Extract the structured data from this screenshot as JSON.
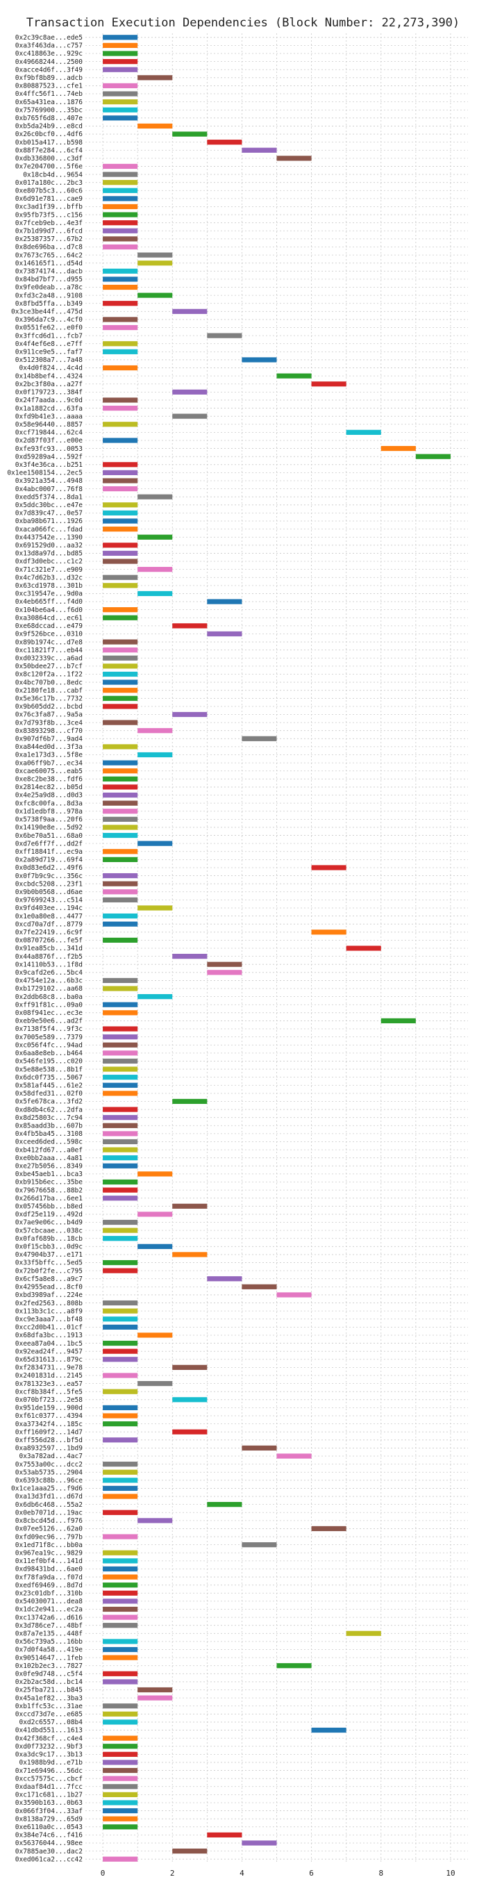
{
  "chart_data": {
    "type": "bar",
    "orientation": "horizontal-gantt",
    "title": "Transaction Execution Dependencies (Block Number: 22,273,390)",
    "xlabel": "",
    "ylabel": "",
    "xlim": [
      -0.5,
      10.5
    ],
    "xticks": [
      0,
      2,
      4,
      6,
      8,
      10
    ],
    "grid": true,
    "legend": "none",
    "bar_length": 1,
    "palette": [
      "#1f77b4",
      "#ff7f0e",
      "#2ca02c",
      "#d62728",
      "#9467bd",
      "#8c564b",
      "#e377c2",
      "#7f7f7f",
      "#bcbd22",
      "#17becf"
    ],
    "transactions": [
      {
        "label": "0x2c39c8ae...ede5",
        "start": 0
      },
      {
        "label": "0xa3f463da...c757",
        "start": 0
      },
      {
        "label": "0xc418863e...929c",
        "start": 0
      },
      {
        "label": "0x49668244...2500",
        "start": 0
      },
      {
        "label": "0xacce4d6f...3f49",
        "start": 0
      },
      {
        "label": "0xf9bf8b89...adcb",
        "start": 1
      },
      {
        "label": "0x80887523...cfe1",
        "start": 0
      },
      {
        "label": "0x4ffc56f1...74eb",
        "start": 0
      },
      {
        "label": "0x65a431ea...1876",
        "start": 0
      },
      {
        "label": "0x75769900...35bc",
        "start": 0
      },
      {
        "label": "0xb765f6d8...407e",
        "start": 0
      },
      {
        "label": "0xb5da24b9...e8cd",
        "start": 1
      },
      {
        "label": "0x26c0bcf0...4df6",
        "start": 2
      },
      {
        "label": "0xb015a417...b598",
        "start": 3
      },
      {
        "label": "0x88f7e284...6cf4",
        "start": 4
      },
      {
        "label": "0xdb336800...c3df",
        "start": 5
      },
      {
        "label": "0x7e204700...5f6e",
        "start": 0
      },
      {
        "label": "0x18cb4d...9654",
        "start": 0
      },
      {
        "label": "0x017a180c...2bc3",
        "start": 0
      },
      {
        "label": "0xe807b5c3...60c6",
        "start": 0
      },
      {
        "label": "0x6d91e781...cae9",
        "start": 0
      },
      {
        "label": "0xc3ad1f39...bffb",
        "start": 0
      },
      {
        "label": "0x95fb73f5...c156",
        "start": 0
      },
      {
        "label": "0x7fceb9eb...4e3f",
        "start": 0
      },
      {
        "label": "0x7b1d99d7...6fcd",
        "start": 0
      },
      {
        "label": "0x25387357...67b2",
        "start": 0
      },
      {
        "label": "0x8de696ba...d7c8",
        "start": 0
      },
      {
        "label": "0x7673c765...64c2",
        "start": 1
      },
      {
        "label": "0x146165f1...d54d",
        "start": 1
      },
      {
        "label": "0x73874174...dacb",
        "start": 0
      },
      {
        "label": "0x84bd7bf7...d955",
        "start": 0
      },
      {
        "label": "0x9fe0deab...a78c",
        "start": 0
      },
      {
        "label": "0xfd3c2a48...9108",
        "start": 1
      },
      {
        "label": "0x8fbd5ffa...b349",
        "start": 0
      },
      {
        "label": "0x3ce3be44f...475d",
        "start": 2
      },
      {
        "label": "0x396da7c9...4cf0",
        "start": 0
      },
      {
        "label": "0x0551fe62...e0f0",
        "start": 0
      },
      {
        "label": "0x3ffcd6d1...fcb7",
        "start": 3
      },
      {
        "label": "0x4f4ef6e8...e7ff",
        "start": 0
      },
      {
        "label": "0x911ce9e5...faf7",
        "start": 0
      },
      {
        "label": "0x512308a7...7a48",
        "start": 4
      },
      {
        "label": "0x4d0f824...4c4d",
        "start": 0
      },
      {
        "label": "0x14b8bef4...4324",
        "start": 5
      },
      {
        "label": "0x2bc3f80a...a27f",
        "start": 6
      },
      {
        "label": "0x0f179723...384f",
        "start": 2
      },
      {
        "label": "0x24f7aada...9c0d",
        "start": 0
      },
      {
        "label": "0x1a1882cd...63fa",
        "start": 0
      },
      {
        "label": "0xfd9b41e3...aaaa",
        "start": 2
      },
      {
        "label": "0x58e96440...8857",
        "start": 0
      },
      {
        "label": "0xcf719844...62c4",
        "start": 7
      },
      {
        "label": "0x2d87f03f...e00e",
        "start": 0
      },
      {
        "label": "0xfe93fc93...0053",
        "start": 8
      },
      {
        "label": "0xd59289a4...592f",
        "start": 9
      },
      {
        "label": "0x3f4e36ca...b251",
        "start": 0
      },
      {
        "label": "0x1ee1508154...2ec5",
        "start": 0
      },
      {
        "label": "0x3921a354...4948",
        "start": 0
      },
      {
        "label": "0x4abc0007...76f8",
        "start": 0
      },
      {
        "label": "0xedd5f374...8da1",
        "start": 1
      },
      {
        "label": "0x5ddc30bc...e47e",
        "start": 0
      },
      {
        "label": "0x7d839c47...0e57",
        "start": 0
      },
      {
        "label": "0xba98b671...1926",
        "start": 0
      },
      {
        "label": "0xaca066fc...fdad",
        "start": 0
      },
      {
        "label": "0x4437542e...1390",
        "start": 1
      },
      {
        "label": "0x691529d0...aa32",
        "start": 0
      },
      {
        "label": "0x13d8a97d...bd85",
        "start": 0
      },
      {
        "label": "0xdf3d0ebc...c1c2",
        "start": 0
      },
      {
        "label": "0x71c321e7...e909",
        "start": 1
      },
      {
        "label": "0x4c7d62b3...d32c",
        "start": 0
      },
      {
        "label": "0x63cd1978...301b",
        "start": 0
      },
      {
        "label": "0xc319547e...9d0a",
        "start": 1
      },
      {
        "label": "0x4eb665ff...f4d0",
        "start": 3
      },
      {
        "label": "0x104be6a4...f6d0",
        "start": 0
      },
      {
        "label": "0xa30864cd...ec61",
        "start": 0
      },
      {
        "label": "0xe68dccad...e479",
        "start": 2
      },
      {
        "label": "0x9f526bce...0310",
        "start": 3
      },
      {
        "label": "0x89b1974c...d7e8",
        "start": 0
      },
      {
        "label": "0xc11821f7...eb44",
        "start": 0
      },
      {
        "label": "0xd032339c...a6ad",
        "start": 0
      },
      {
        "label": "0x50bdee27...b7cf",
        "start": 0
      },
      {
        "label": "0x8c120f2a...1f22",
        "start": 0
      },
      {
        "label": "0x4bc707b0...8edc",
        "start": 0
      },
      {
        "label": "0x2180fe18...cabf",
        "start": 0
      },
      {
        "label": "0x5e36c17b...7732",
        "start": 0
      },
      {
        "label": "0x9b605dd2...bcbd",
        "start": 0
      },
      {
        "label": "0x76c3fa87...9a5a",
        "start": 2
      },
      {
        "label": "0x7d793f8b...3ce4",
        "start": 0
      },
      {
        "label": "0x83893298...cf70",
        "start": 1
      },
      {
        "label": "0x907df6b7...9ad4",
        "start": 4
      },
      {
        "label": "0xa844ed0d...3f3a",
        "start": 0
      },
      {
        "label": "0xa1e173d3...5f8e",
        "start": 1
      },
      {
        "label": "0xa06ff9b7...ec34",
        "start": 0
      },
      {
        "label": "0xcae60075...eab5",
        "start": 0
      },
      {
        "label": "0xe8c2be38...fdf6",
        "start": 0
      },
      {
        "label": "0x2814ec82...b05d",
        "start": 0
      },
      {
        "label": "0x4e25a9d8...d0d3",
        "start": 0
      },
      {
        "label": "0xfc8c00fa...8d3a",
        "start": 0
      },
      {
        "label": "0x1d1edbf8...978a",
        "start": 0
      },
      {
        "label": "0x5738f9aa...20f6",
        "start": 0
      },
      {
        "label": "0x14190e8e...5d92",
        "start": 0
      },
      {
        "label": "0x6be70a51...68a0",
        "start": 0
      },
      {
        "label": "0xd7e6ff7f...dd2f",
        "start": 1
      },
      {
        "label": "0xff18841f...ec9a",
        "start": 0
      },
      {
        "label": "0x2a89d719...69f4",
        "start": 0
      },
      {
        "label": "0x0d83e6d2...49f6",
        "start": 6
      },
      {
        "label": "0x0f7b9c9c...356c",
        "start": 0
      },
      {
        "label": "0xcbdc5208...23f1",
        "start": 0
      },
      {
        "label": "0x9b0b0568...d6ae",
        "start": 0
      },
      {
        "label": "0x97699243...c514",
        "start": 0
      },
      {
        "label": "0x9fd403ee...194c",
        "start": 1
      },
      {
        "label": "0x1e0a80e8...4477",
        "start": 0
      },
      {
        "label": "0xcd70a7df...8779",
        "start": 0
      },
      {
        "label": "0x7fe22419...6c9f",
        "start": 6
      },
      {
        "label": "0x08707266...fe5f",
        "start": 0
      },
      {
        "label": "0x91ea85cb...341d",
        "start": 7
      },
      {
        "label": "0x44a8876f...f2b5",
        "start": 2
      },
      {
        "label": "0x14110b53...1f8d",
        "start": 3
      },
      {
        "label": "0x9cafd2e6...5bc4",
        "start": 3
      },
      {
        "label": "0x4754e12a...6b3c",
        "start": 0
      },
      {
        "label": "0xb1729102...aa68",
        "start": 0
      },
      {
        "label": "0x2ddb68c8...ba0a",
        "start": 1
      },
      {
        "label": "0xff91f81c...09a0",
        "start": 0
      },
      {
        "label": "0x08f941ec...ec3e",
        "start": 0
      },
      {
        "label": "0xeb9e50e6...ad2f",
        "start": 8
      },
      {
        "label": "0x7138f5f4...9f3c",
        "start": 0
      },
      {
        "label": "0x7005e589...7379",
        "start": 0
      },
      {
        "label": "0xc056f4fc...94ad",
        "start": 0
      },
      {
        "label": "0x6aa8e8eb...b464",
        "start": 0
      },
      {
        "label": "0x546fe195...c020",
        "start": 0
      },
      {
        "label": "0x5e88e538...8b1f",
        "start": 0
      },
      {
        "label": "0x6dc0f735...5067",
        "start": 0
      },
      {
        "label": "0x581af445...61e2",
        "start": 0
      },
      {
        "label": "0x58dfed31...02f0",
        "start": 0
      },
      {
        "label": "0x5fe678ca...3fd2",
        "start": 2
      },
      {
        "label": "0xd8db4c62...2dfa",
        "start": 0
      },
      {
        "label": "0x8d25803c...7c94",
        "start": 0
      },
      {
        "label": "0x85aadd3b...607b",
        "start": 0
      },
      {
        "label": "0x4fb5ba45...3108",
        "start": 0
      },
      {
        "label": "0xceed6ded...598c",
        "start": 0
      },
      {
        "label": "0xb412fd67...a0ef",
        "start": 0
      },
      {
        "label": "0xe0bb2aaa...4a81",
        "start": 0
      },
      {
        "label": "0xe27b5056...8349",
        "start": 0
      },
      {
        "label": "0xbe45aeb1...bca3",
        "start": 1
      },
      {
        "label": "0xb915b6ec...35be",
        "start": 0
      },
      {
        "label": "0x79676658...88b2",
        "start": 0
      },
      {
        "label": "0x266d17ba...6ee1",
        "start": 0
      },
      {
        "label": "0x057456bb...b8ed",
        "start": 2
      },
      {
        "label": "0xdf25e119...492d",
        "start": 1
      },
      {
        "label": "0x7ae9e06c...b4d9",
        "start": 0
      },
      {
        "label": "0x57cbcaae...038c",
        "start": 0
      },
      {
        "label": "0x0faf689b...18cb",
        "start": 0
      },
      {
        "label": "0x0f15cbb3...0d9c",
        "start": 1
      },
      {
        "label": "0x47904b37...e171",
        "start": 2
      },
      {
        "label": "0x33f5bffc...5ed5",
        "start": 0
      },
      {
        "label": "0x72b0f2fe...c795",
        "start": 0
      },
      {
        "label": "0x6cf5a8e8...a9c7",
        "start": 3
      },
      {
        "label": "0x42955ead...8cf0",
        "start": 4
      },
      {
        "label": "0xbd3989af...224e",
        "start": 5
      },
      {
        "label": "0x2fed2563...808b",
        "start": 0
      },
      {
        "label": "0x113b3c1c...a8f9",
        "start": 0
      },
      {
        "label": "0xc9e3aaa7...bf48",
        "start": 0
      },
      {
        "label": "0xcc2d0b41...01cf",
        "start": 0
      },
      {
        "label": "0x68dfa3bc...1913",
        "start": 1
      },
      {
        "label": "0xeea87a04...1bc5",
        "start": 0
      },
      {
        "label": "0x92ead24f...9457",
        "start": 0
      },
      {
        "label": "0x65d31613...879c",
        "start": 0
      },
      {
        "label": "0xf2834731...9e78",
        "start": 2
      },
      {
        "label": "0x2401831d...2145",
        "start": 0
      },
      {
        "label": "0x781323e3...ea57",
        "start": 1
      },
      {
        "label": "0xcf8b384f...5fe5",
        "start": 0
      },
      {
        "label": "0x070bf723...2e58",
        "start": 2
      },
      {
        "label": "0x951de159...900d",
        "start": 0
      },
      {
        "label": "0xf61c0377...4394",
        "start": 0
      },
      {
        "label": "0xa37342f4...185c",
        "start": 0
      },
      {
        "label": "0xff1609f2...14d7",
        "start": 2
      },
      {
        "label": "0xff556d28...bf5d",
        "start": 0
      },
      {
        "label": "0xa8932597...1bd9",
        "start": 4
      },
      {
        "label": "0x3a782ad...4ac7",
        "start": 5
      },
      {
        "label": "0x7553a00c...dcc2",
        "start": 0
      },
      {
        "label": "0x53ab5735...2904",
        "start": 0
      },
      {
        "label": "0x6393c88b...96ce",
        "start": 0
      },
      {
        "label": "0x1ce1aaa25...f9d6",
        "start": 0
      },
      {
        "label": "0xa13d3fd1...d67d",
        "start": 0
      },
      {
        "label": "0x6db6c468...55a2",
        "start": 3
      },
      {
        "label": "0x0eb7071d...19ac",
        "start": 0
      },
      {
        "label": "0x8cbcd45d...f976",
        "start": 1
      },
      {
        "label": "0x07ee5126...62a0",
        "start": 6
      },
      {
        "label": "0xfd09ec96...797b",
        "start": 0
      },
      {
        "label": "0x1ed71f8c...bb0a",
        "start": 4
      },
      {
        "label": "0x967ea19c...9829",
        "start": 0
      },
      {
        "label": "0x11ef0bf4...141d",
        "start": 0
      },
      {
        "label": "0xd98431bd...6ae0",
        "start": 0
      },
      {
        "label": "0xf78fa9da...f07d",
        "start": 0
      },
      {
        "label": "0xedf69469...8d7d",
        "start": 0
      },
      {
        "label": "0x23c01dbf...310b",
        "start": 0
      },
      {
        "label": "0x54030071...dea8",
        "start": 0
      },
      {
        "label": "0x1dc2e941...ec2a",
        "start": 0
      },
      {
        "label": "0xc13742a6...d616",
        "start": 0
      },
      {
        "label": "0x3d786ce7...48bf",
        "start": 0
      },
      {
        "label": "0x87a7e135...448f",
        "start": 7
      },
      {
        "label": "0x56c739a5...16bb",
        "start": 0
      },
      {
        "label": "0x7d0f4a58...419e",
        "start": 0
      },
      {
        "label": "0x90514647...1feb",
        "start": 0
      },
      {
        "label": "0x102b2ec3...7827",
        "start": 5
      },
      {
        "label": "0x0fe9d748...c5f4",
        "start": 0
      },
      {
        "label": "0x2b2ac58d...bc14",
        "start": 0
      },
      {
        "label": "0x25fba721...b845",
        "start": 1
      },
      {
        "label": "0x45a1ef82...3ba3",
        "start": 1
      },
      {
        "label": "0xb1ffc53c...31ae",
        "start": 0
      },
      {
        "label": "0xccd73d7e...e685",
        "start": 0
      },
      {
        "label": "0xd2c6557...08b4",
        "start": 0
      },
      {
        "label": "0x41dbd551...1613",
        "start": 6
      },
      {
        "label": "0x42f368cf...c4e4",
        "start": 0
      },
      {
        "label": "0xd0f73232...9bf3",
        "start": 0
      },
      {
        "label": "0xa3dc9c17...3b13",
        "start": 0
      },
      {
        "label": "0x1988b9d...e71b",
        "start": 0
      },
      {
        "label": "0x71e69496...56dc",
        "start": 0
      },
      {
        "label": "0xcc57575c...cbcf",
        "start": 0
      },
      {
        "label": "0xdaaf84d1...7fcc",
        "start": 0
      },
      {
        "label": "0xc171c681...1b27",
        "start": 0
      },
      {
        "label": "0x3590b163...0b63",
        "start": 0
      },
      {
        "label": "0x066f3f04...33af",
        "start": 0
      },
      {
        "label": "0x8138a729...65d9",
        "start": 0
      },
      {
        "label": "0xe6110a0c...0543",
        "start": 0
      },
      {
        "label": "0x384e74c6...f416",
        "start": 3
      },
      {
        "label": "0x56376044...98ee",
        "start": 4
      },
      {
        "label": "0x7885ae30...dac2",
        "start": 2
      },
      {
        "label": "0xed061ca2...cc42",
        "start": 0
      }
    ]
  }
}
